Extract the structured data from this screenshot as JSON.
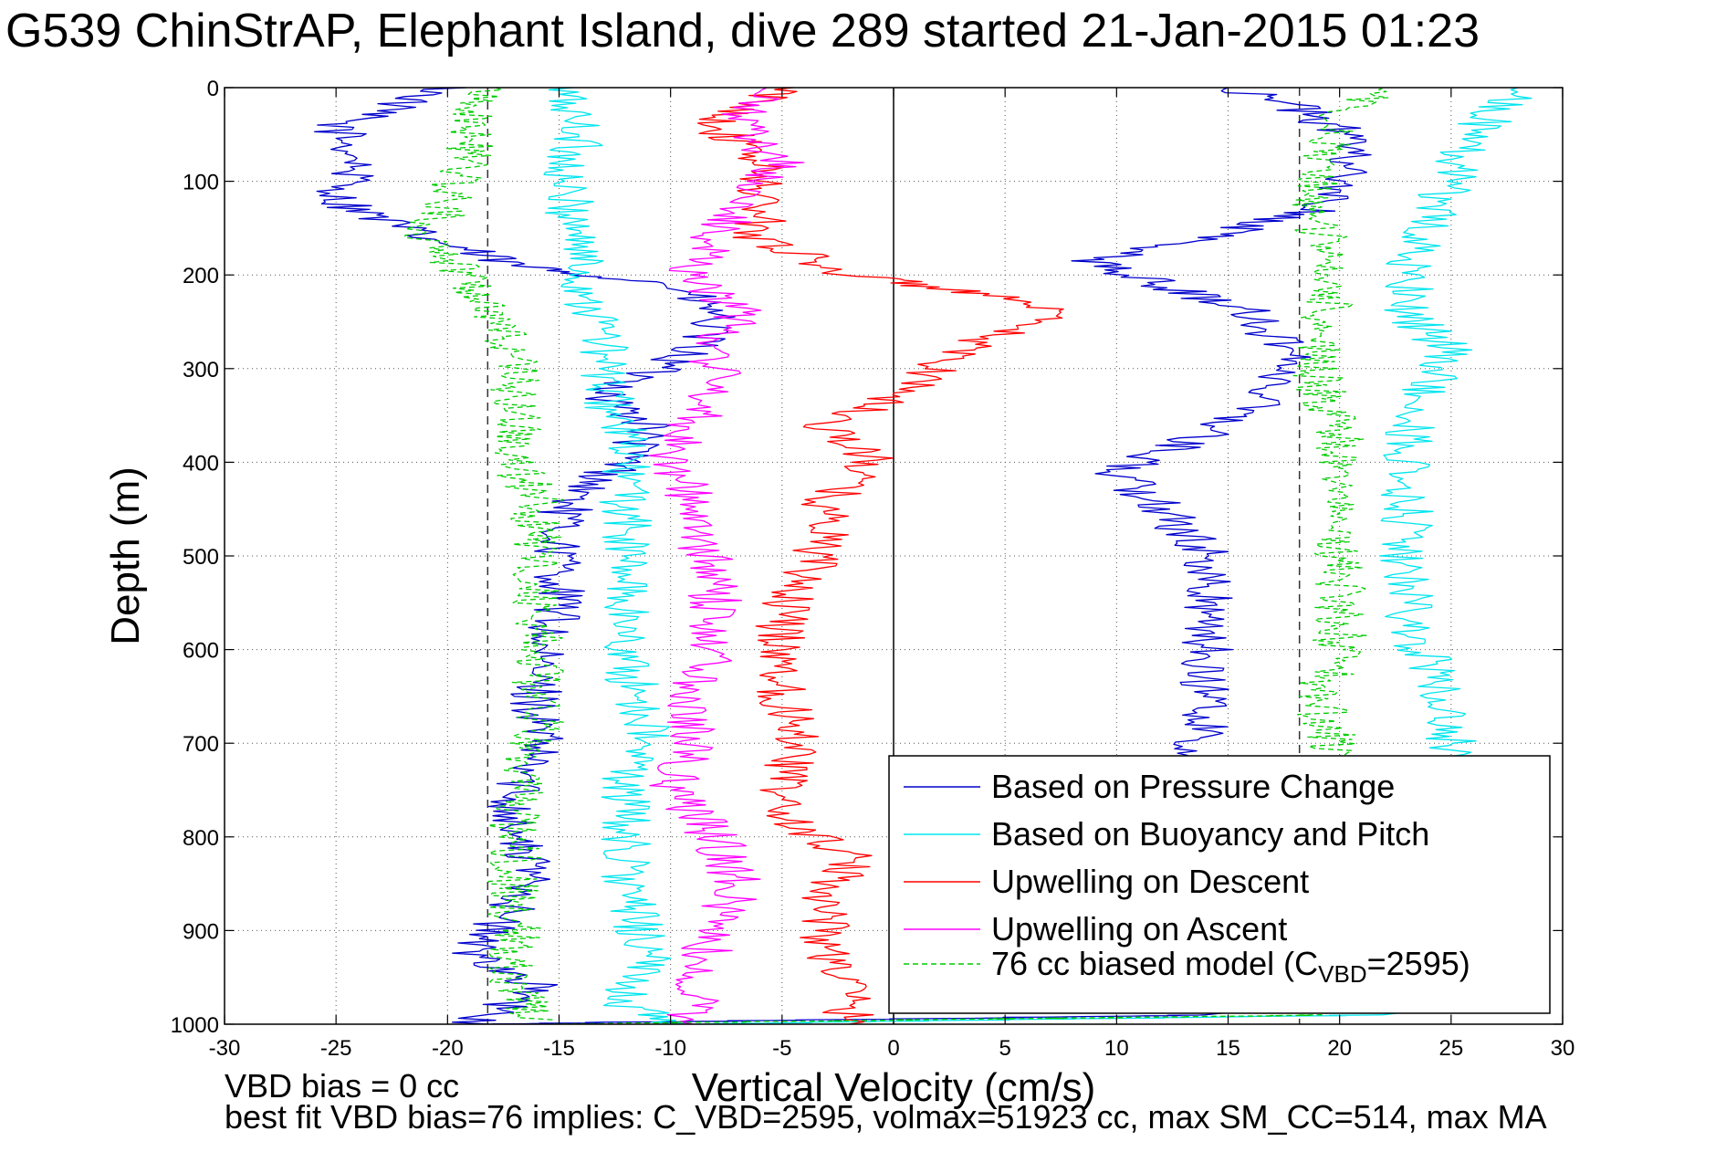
{
  "title": "G539 ChinStrAP, Elephant Island, dive 289 started 21-Jan-2015 01:23",
  "footer": {
    "line1": "VBD bias = 0 cc",
    "line2": "best fit VBD bias=76 implies: C_VBD=2595, volmax=51923 cc, max SM_CC=514, max MA"
  },
  "colors": {
    "pressure": "#0000cc",
    "buoyancy": "#00e5ee",
    "descent": "#ff0000",
    "ascent": "#ff00ff",
    "model": "#00cc00"
  },
  "chart_data": {
    "type": "line",
    "xlabel": "Vertical Velocity (cm/s)",
    "ylabel": "Depth (m)",
    "xlim": [
      -30,
      30
    ],
    "ylim": [
      1000,
      0
    ],
    "y_reversed": true,
    "x_ticks": [
      -30,
      -25,
      -20,
      -15,
      -10,
      -5,
      0,
      5,
      10,
      15,
      20,
      25,
      30
    ],
    "y_ticks": [
      0,
      100,
      200,
      300,
      400,
      500,
      600,
      700,
      800,
      900,
      1000
    ],
    "grid": true,
    "legend_position": "bottom-right",
    "reference_lines": [
      {
        "x": -18.2,
        "style": "dashed"
      },
      {
        "x": 18.2,
        "style": "dashed"
      },
      {
        "x": 0,
        "style": "solid"
      }
    ],
    "series": [
      {
        "name": "Based on Pressure Change",
        "color": "#0000cc",
        "points": [
          [
            -20,
            0
          ],
          [
            -25,
            40
          ],
          [
            -24,
            80
          ],
          [
            -25,
            120
          ],
          [
            -21,
            160
          ],
          [
            -17,
            190
          ],
          [
            -10,
            210
          ],
          [
            -8,
            240
          ],
          [
            -9,
            280
          ],
          [
            -13,
            330
          ],
          [
            -11,
            360
          ],
          [
            -12,
            400
          ],
          [
            -14,
            430
          ],
          [
            -15,
            460
          ],
          [
            -15,
            500
          ],
          [
            -15,
            560
          ],
          [
            -16,
            600
          ],
          [
            -16,
            650
          ],
          [
            -16,
            700
          ],
          [
            -17,
            760
          ],
          [
            -17,
            800
          ],
          [
            -16,
            850
          ],
          [
            -19,
            920
          ],
          [
            -16,
            960
          ],
          [
            -19,
            1000
          ],
          [
            15,
            990
          ],
          [
            13,
            720
          ],
          [
            14,
            680
          ],
          [
            14,
            620
          ],
          [
            14,
            560
          ],
          [
            14,
            500
          ],
          [
            12,
            450
          ],
          [
            10,
            410
          ],
          [
            14,
            370
          ],
          [
            17,
            330
          ],
          [
            18,
            290
          ],
          [
            16,
            240
          ],
          [
            12,
            210
          ],
          [
            9,
            185
          ],
          [
            14,
            160
          ],
          [
            19,
            130
          ],
          [
            20,
            100
          ],
          [
            21,
            60
          ],
          [
            18,
            20
          ],
          [
            15,
            0
          ]
        ]
      },
      {
        "name": "Based on Buoyancy and Pitch",
        "color": "#00e5ee",
        "points": [
          [
            -15,
            0
          ],
          [
            -14,
            50
          ],
          [
            -15,
            100
          ],
          [
            -14,
            160
          ],
          [
            -14,
            210
          ],
          [
            -13,
            260
          ],
          [
            -13,
            320
          ],
          [
            -12,
            380
          ],
          [
            -12,
            440
          ],
          [
            -12,
            500
          ],
          [
            -12,
            560
          ],
          [
            -12,
            620
          ],
          [
            -11,
            680
          ],
          [
            -12,
            740
          ],
          [
            -12,
            800
          ],
          [
            -12,
            860
          ],
          [
            -11,
            920
          ],
          [
            -12,
            980
          ],
          [
            -10,
            1000
          ],
          [
            22,
            990
          ],
          [
            25,
            700
          ],
          [
            24,
            620
          ],
          [
            23,
            560
          ],
          [
            23,
            500
          ],
          [
            23,
            440
          ],
          [
            23,
            380
          ],
          [
            24,
            320
          ],
          [
            25,
            280
          ],
          [
            23,
            240
          ],
          [
            23,
            200
          ],
          [
            24,
            150
          ],
          [
            25,
            100
          ],
          [
            26,
            50
          ],
          [
            28,
            0
          ]
        ]
      },
      {
        "name": "Upwelling on Descent",
        "color": "#ff0000",
        "points": [
          [
            -5,
            0
          ],
          [
            -8,
            40
          ],
          [
            -6,
            80
          ],
          [
            -6,
            120
          ],
          [
            -6,
            160
          ],
          [
            -2,
            200
          ],
          [
            4,
            220
          ],
          [
            7,
            240
          ],
          [
            3,
            280
          ],
          [
            1,
            320
          ],
          [
            -3,
            360
          ],
          [
            -1,
            400
          ],
          [
            -3,
            440
          ],
          [
            -3,
            480
          ],
          [
            -4,
            520
          ],
          [
            -5,
            560
          ],
          [
            -5,
            600
          ],
          [
            -5,
            650
          ],
          [
            -4,
            700
          ],
          [
            -5,
            740
          ],
          [
            -5,
            780
          ],
          [
            -2,
            820
          ],
          [
            -3,
            870
          ],
          [
            -3,
            920
          ],
          [
            -2,
            960
          ],
          [
            -2,
            1000
          ]
        ]
      },
      {
        "name": "Upwelling on Ascent",
        "color": "#ff00ff",
        "points": [
          [
            -6,
            0
          ],
          [
            -7,
            40
          ],
          [
            -5,
            80
          ],
          [
            -7,
            120
          ],
          [
            -8,
            160
          ],
          [
            -9,
            200
          ],
          [
            -7,
            240
          ],
          [
            -8,
            280
          ],
          [
            -8,
            320
          ],
          [
            -9,
            360
          ],
          [
            -10,
            400
          ],
          [
            -9,
            440
          ],
          [
            -9,
            480
          ],
          [
            -8,
            520
          ],
          [
            -8,
            560
          ],
          [
            -8,
            600
          ],
          [
            -9,
            650
          ],
          [
            -9,
            700
          ],
          [
            -10,
            750
          ],
          [
            -8,
            800
          ],
          [
            -7,
            850
          ],
          [
            -8,
            900
          ],
          [
            -9,
            950
          ],
          [
            -9,
            1000
          ]
        ]
      },
      {
        "name": "76 cc biased model (C_VBD=2595)",
        "color": "#00cc00",
        "dashed": true,
        "points": [
          [
            -18,
            0
          ],
          [
            -19,
            40
          ],
          [
            -19,
            80
          ],
          [
            -20,
            120
          ],
          [
            -21,
            160
          ],
          [
            -19,
            200
          ],
          [
            -18,
            240
          ],
          [
            -17,
            280
          ],
          [
            -17,
            320
          ],
          [
            -17,
            360
          ],
          [
            -17,
            400
          ],
          [
            -16,
            440
          ],
          [
            -16,
            480
          ],
          [
            -16,
            520
          ],
          [
            -16,
            560
          ],
          [
            -16,
            600
          ],
          [
            -16,
            650
          ],
          [
            -16,
            700
          ],
          [
            -17,
            760
          ],
          [
            -17,
            800
          ],
          [
            -17,
            850
          ],
          [
            -17,
            900
          ],
          [
            -17,
            950
          ],
          [
            -16,
            1000
          ],
          [
            20,
            990
          ],
          [
            20,
            720
          ],
          [
            19,
            650
          ],
          [
            20,
            600
          ],
          [
            20,
            540
          ],
          [
            20,
            480
          ],
          [
            20,
            440
          ],
          [
            20,
            380
          ],
          [
            19,
            320
          ],
          [
            19,
            260
          ],
          [
            20,
            200
          ],
          [
            19,
            140
          ],
          [
            19,
            80
          ],
          [
            20,
            30
          ],
          [
            22,
            0
          ]
        ]
      }
    ],
    "legend": [
      {
        "label": "Based on Pressure Change",
        "color": "#0000cc"
      },
      {
        "label": "Based on Buoyancy and Pitch",
        "color": "#00e5ee"
      },
      {
        "label": "Upwelling on Descent",
        "color": "#ff0000"
      },
      {
        "label": "Upwelling on Ascent",
        "color": "#ff00ff"
      },
      {
        "label": "76 cc biased model (C",
        "sub": "VBD",
        "suffix": "=2595)",
        "color": "#00cc00",
        "dashed": true
      }
    ]
  }
}
